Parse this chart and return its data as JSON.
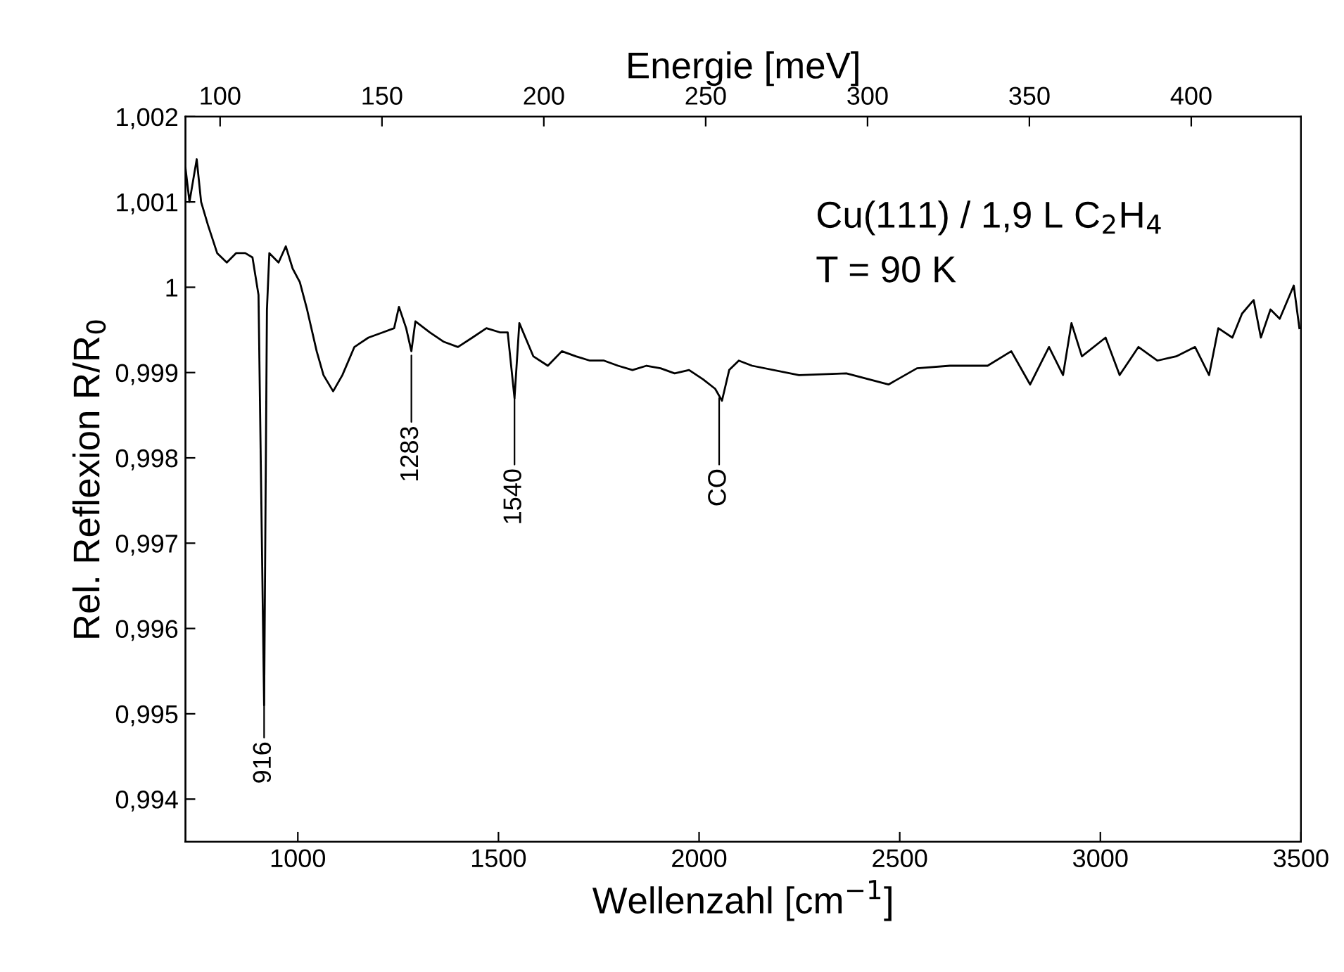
{
  "chart_data": {
    "type": "line",
    "xlabel": "Wellenzahl [cm$^{−1}$]",
    "ylabel": "Rel. Reflexion R/R$_{0}$",
    "x2label": "Energie [meV]",
    "xlim": [
      720,
      3500
    ],
    "xticks": [
      1000,
      1500,
      2000,
      2500,
      3000,
      3500
    ],
    "x2lim": [
      89.3,
      433.9
    ],
    "x2ticks": [
      100,
      150,
      200,
      250,
      300,
      350,
      400
    ],
    "ylim": [
      0.9935,
      1.002
    ],
    "yticks": [
      {
        "value": 0.994,
        "label": "0,994"
      },
      {
        "value": 0.995,
        "label": "0,995"
      },
      {
        "value": 0.996,
        "label": "0,996"
      },
      {
        "value": 0.997,
        "label": "0,997"
      },
      {
        "value": 0.998,
        "label": "0,998"
      },
      {
        "value": 0.999,
        "label": "0,999"
      },
      {
        "value": 1.0,
        "label": "1"
      },
      {
        "value": 1.001,
        "label": "1,001"
      },
      {
        "value": 1.002,
        "label": "1,002"
      }
    ],
    "grid": false,
    "legend": false,
    "marker": "none",
    "line_style": "solid",
    "series": [
      {
        "color": "#000000",
        "x": [
          720,
          730,
          748,
          759,
          776,
          799,
          823,
          846,
          869,
          887,
          902,
          909,
          916,
          923,
          929,
          952,
          970,
          987,
          1005,
          1023,
          1047,
          1064,
          1088,
          1111,
          1141,
          1176,
          1211,
          1240,
          1252,
          1270,
          1283,
          1293,
          1329,
          1364,
          1399,
          1435,
          1470,
          1505,
          1523,
          1540,
          1552,
          1587,
          1623,
          1658,
          1693,
          1728,
          1763,
          1798,
          1834,
          1869,
          1904,
          1939,
          1975,
          2010,
          2040,
          2057,
          2075,
          2099,
          2132,
          2249,
          2367,
          2472,
          2543,
          2625,
          2719,
          2778,
          2825,
          2872,
          2907,
          2928,
          2954,
          3013,
          3048,
          3095,
          3142,
          3189,
          3236,
          3271,
          3294,
          3329,
          3353,
          3382,
          3400,
          3424,
          3447,
          3482,
          3496
        ],
        "values": [
          1.0014,
          1.001,
          1.0015,
          1.001,
          1.00073,
          1.0004,
          1.00029,
          1.0004,
          1.0004,
          1.00035,
          0.99991,
          0.9975,
          0.9951,
          0.99974,
          1.0004,
          1.00029,
          1.00048,
          1.00022,
          1.00006,
          0.99974,
          0.99925,
          0.99897,
          0.99878,
          0.99897,
          0.9993,
          0.99941,
          0.99947,
          0.99952,
          0.99977,
          0.99952,
          0.99925,
          0.9996,
          0.99947,
          0.99936,
          0.9993,
          0.99941,
          0.99952,
          0.99947,
          0.99947,
          0.9987,
          0.99958,
          0.99919,
          0.99908,
          0.99925,
          0.99919,
          0.99914,
          0.99914,
          0.99908,
          0.99903,
          0.99908,
          0.99905,
          0.99899,
          0.99903,
          0.99892,
          0.99881,
          0.99867,
          0.99903,
          0.99914,
          0.99908,
          0.99897,
          0.99899,
          0.99886,
          0.99905,
          0.99908,
          0.99908,
          0.99925,
          0.99886,
          0.9993,
          0.99897,
          0.99958,
          0.99919,
          0.99941,
          0.99897,
          0.9993,
          0.99914,
          0.99919,
          0.9993,
          0.99897,
          0.99952,
          0.99941,
          0.99969,
          0.99985,
          0.99941,
          0.99974,
          0.99963,
          1.00002,
          0.99952
        ]
      }
    ],
    "annotations": [
      "Cu(111) / 1,9 L C$_{2}$H$_{4}$",
      "T = 90 K",
      {
        "text": "916",
        "x": 916,
        "y": 0.9955
      },
      {
        "text": "1283",
        "x": 1283,
        "y": 0.9992
      },
      {
        "text": "1540",
        "x": 1540,
        "y": 0.9987
      },
      {
        "text": "CO",
        "x": 2050,
        "y": 0.9987
      }
    ]
  }
}
